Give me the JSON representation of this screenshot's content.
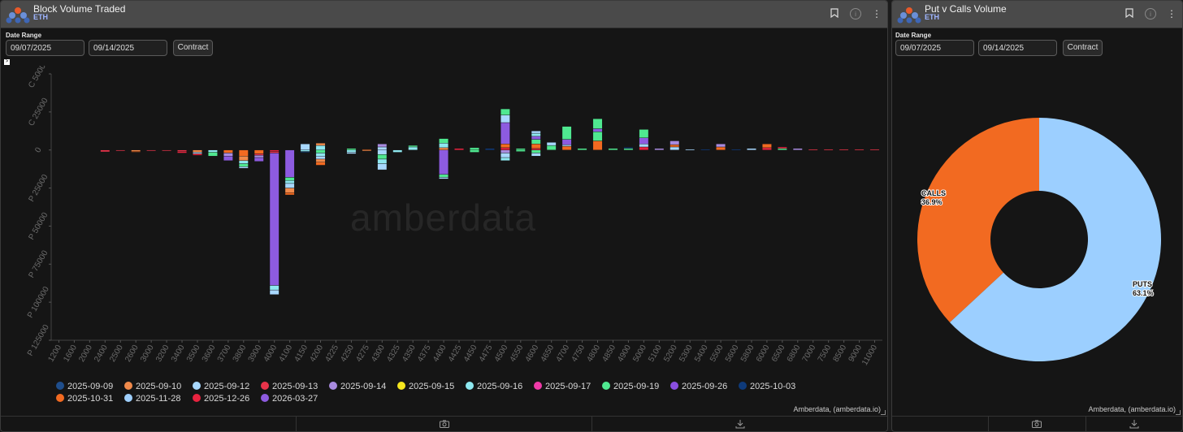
{
  "left": {
    "title": "Block Volume Traded",
    "subtitle": "ETH",
    "date_range_label": "Date Range",
    "date_from": "09/07/2025",
    "date_to": "09/14/2025",
    "contract_label": "Contract",
    "credit": "Amberdata, (amberdata.io)",
    "watermark": "amberdata"
  },
  "right": {
    "title": "Put v Calls Volume",
    "subtitle": "ETH",
    "date_range_label": "Date Range",
    "date_from": "09/07/2025",
    "date_to": "09/14/2025",
    "contract_label": "Contract",
    "credit": "Amberdata, (amberdata.io)"
  },
  "icons": [
    "amberdata-logo-icon",
    "bookmark-icon",
    "info-icon",
    "more-vert-icon",
    "camera-icon",
    "download-icon"
  ],
  "colors": {
    "2025-09-09": "#1f4e8c",
    "2025-09-10": "#f08a4b",
    "2025-09-12": "#a8d8ff",
    "2025-09-13": "#e8334a",
    "2025-09-14": "#a98be0",
    "2025-09-15": "#f5e61e",
    "2025-09-16": "#8ee8f0",
    "2025-09-17": "#f03aa8",
    "2025-09-19": "#4fe890",
    "2025-09-26": "#8a4ee0",
    "2025-10-03": "#0e3a7a",
    "2025-10-31": "#f26a21",
    "2025-11-28": "#9fd0ff",
    "2025-12-26": "#e8233f",
    "2026-03-27": "#8d5be0"
  },
  "chart_data": [
    {
      "type": "bar",
      "stacked": true,
      "y_tick_labels": [
        "C 50000",
        "C 25000",
        "0",
        "P 25000",
        "P 50000",
        "P 75000",
        "P 100000",
        "P 125000"
      ],
      "ylim": [
        -125000,
        50000
      ],
      "categories": [
        "1200",
        "1600",
        "2000",
        "2400",
        "2500",
        "2600",
        "3000",
        "3200",
        "3400",
        "3500",
        "3600",
        "3700",
        "3800",
        "3900",
        "4000",
        "4100",
        "4150",
        "4200",
        "4225",
        "4250",
        "4275",
        "4300",
        "4325",
        "4350",
        "4375",
        "4400",
        "4425",
        "4450",
        "4475",
        "4500",
        "4550",
        "4600",
        "4650",
        "4700",
        "4750",
        "4800",
        "4850",
        "4900",
        "5000",
        "5100",
        "5200",
        "5300",
        "5400",
        "5500",
        "5600",
        "5800",
        "6000",
        "6500",
        "6800",
        "7000",
        "7500",
        "8500",
        "9000",
        "11000"
      ],
      "legend": [
        "2025-09-09",
        "2025-09-10",
        "2025-09-12",
        "2025-09-13",
        "2025-09-14",
        "2025-09-15",
        "2025-09-16",
        "2025-09-17",
        "2025-09-19",
        "2025-09-26",
        "2025-10-03",
        "2025-10-31",
        "2025-11-28",
        "2025-12-26",
        "2026-03-27"
      ],
      "stacks": [
        {
          "c": "2400",
          "calls": [],
          "puts": [
            [
              "2025-09-13",
              1200
            ]
          ]
        },
        {
          "c": "2500",
          "calls": [],
          "puts": [
            [
              "2025-09-13",
              500
            ]
          ]
        },
        {
          "c": "2600",
          "calls": [],
          "puts": [
            [
              "2025-09-10",
              800
            ],
            [
              "2025-10-31",
              500
            ]
          ]
        },
        {
          "c": "3000",
          "calls": [],
          "puts": [
            [
              "2025-09-13",
              500
            ]
          ]
        },
        {
          "c": "3200",
          "calls": [],
          "puts": [
            [
              "2025-09-13",
              500
            ]
          ]
        },
        {
          "c": "3400",
          "calls": [],
          "puts": [
            [
              "2025-09-13",
              1000
            ],
            [
              "2025-12-26",
              1000
            ]
          ]
        },
        {
          "c": "3500",
          "calls": [],
          "puts": [
            [
              "2025-09-10",
              1500
            ],
            [
              "2025-09-12",
              1000
            ],
            [
              "2025-12-26",
              1000
            ]
          ]
        },
        {
          "c": "3600",
          "calls": [],
          "puts": [
            [
              "2025-09-16",
              1500
            ],
            [
              "2025-09-19",
              2500
            ]
          ]
        },
        {
          "c": "3700",
          "calls": [],
          "puts": [
            [
              "2025-10-31",
              2000
            ],
            [
              "2025-09-14",
              2000
            ],
            [
              "2026-03-27",
              3000
            ]
          ]
        },
        {
          "c": "3800",
          "calls": [],
          "puts": [
            [
              "2025-10-31",
              4000
            ],
            [
              "2025-09-10",
              3000
            ],
            [
              "2025-09-16",
              2000
            ],
            [
              "2025-09-19",
              2000
            ],
            [
              "2025-09-12",
              1000
            ]
          ]
        },
        {
          "c": "3900",
          "calls": [],
          "puts": [
            [
              "2025-10-31",
              2500
            ],
            [
              "2025-09-13",
              1000
            ],
            [
              "2025-09-14",
              1500
            ],
            [
              "2026-03-27",
              2500
            ]
          ]
        },
        {
          "c": "4000",
          "calls": [],
          "puts": [
            [
              "2025-12-26",
              1000
            ],
            [
              "2025-09-13",
              1000
            ],
            [
              "2026-03-27",
              87000
            ],
            [
              "2025-09-16",
              3000
            ],
            [
              "2025-09-12",
              3000
            ]
          ]
        },
        {
          "c": "4100",
          "calls": [],
          "puts": [
            [
              "2026-03-27",
              18000
            ],
            [
              "2025-09-19",
              2000
            ],
            [
              "2025-09-16",
              2000
            ],
            [
              "2025-09-12",
              3000
            ],
            [
              "2025-09-10",
              3000
            ],
            [
              "2025-10-31",
              1500
            ]
          ]
        },
        {
          "c": "4150",
          "calls": [
            [
              "2025-09-12",
              4000
            ]
          ],
          "puts": [
            [
              "2025-09-16",
              1000
            ],
            [
              "2025-10-03",
              500
            ]
          ]
        },
        {
          "c": "4200",
          "calls": [
            [
              "2025-09-16",
              3000
            ],
            [
              "2025-09-10",
              1500
            ]
          ],
          "puts": [
            [
              "2025-09-19",
              2000
            ],
            [
              "2025-09-16",
              2000
            ],
            [
              "2025-09-12",
              2000
            ],
            [
              "2025-09-10",
              2000
            ],
            [
              "2025-10-31",
              2000
            ]
          ]
        },
        {
          "c": "4250",
          "calls": [
            [
              "2025-09-19",
              1000
            ]
          ],
          "puts": [
            [
              "2025-09-16",
              1500
            ],
            [
              "2025-09-12",
              1000
            ]
          ]
        },
        {
          "c": "4275",
          "calls": [
            [
              "2025-10-31",
              500
            ]
          ],
          "puts": [
            [
              "2025-09-10",
              500
            ]
          ]
        },
        {
          "c": "4300",
          "calls": [
            [
              "2025-09-12",
              2000
            ],
            [
              "2025-09-14",
              2000
            ]
          ],
          "puts": [
            [
              "2025-09-12",
              3000
            ],
            [
              "2025-09-19",
              3000
            ],
            [
              "2025-09-16",
              3000
            ],
            [
              "2025-09-12",
              4000
            ]
          ]
        },
        {
          "c": "4325",
          "calls": [],
          "puts": [
            [
              "2025-09-16",
              1500
            ]
          ]
        },
        {
          "c": "4350",
          "calls": [
            [
              "2025-09-16",
              2000
            ],
            [
              "2025-09-19",
              1000
            ]
          ],
          "puts": []
        },
        {
          "c": "4400",
          "calls": [
            [
              "2025-09-10",
              1500
            ],
            [
              "2025-09-16",
              3000
            ],
            [
              "2025-09-19",
              3000
            ]
          ],
          "puts": [
            [
              "2026-03-27",
              16000
            ],
            [
              "2025-09-19",
              2000
            ],
            [
              "2025-09-12",
              1000
            ]
          ]
        },
        {
          "c": "4425",
          "calls": [
            [
              "2025-12-26",
              1000
            ]
          ],
          "puts": []
        },
        {
          "c": "4450",
          "calls": [
            [
              "2025-09-19",
              1500
            ]
          ],
          "puts": [
            [
              "2025-09-19",
              1500
            ]
          ]
        },
        {
          "c": "4475",
          "calls": [
            [
              "2025-10-03",
              1000
            ]
          ],
          "puts": []
        },
        {
          "c": "4500",
          "calls": [
            [
              "2025-12-26",
              1500
            ],
            [
              "2025-10-31",
              2500
            ],
            [
              "2026-03-27",
              14000
            ],
            [
              "2025-09-12",
              5000
            ],
            [
              "2025-09-19",
              4000
            ]
          ],
          "puts": [
            [
              "2025-09-14",
              2000
            ],
            [
              "2025-09-12",
              3000
            ],
            [
              "2025-09-16",
              2000
            ]
          ]
        },
        {
          "c": "4550",
          "calls": [
            [
              "2025-09-19",
              1000
            ]
          ],
          "puts": [
            [
              "2025-09-19",
              1000
            ]
          ]
        },
        {
          "c": "4600",
          "calls": [
            [
              "2025-12-26",
              1000
            ],
            [
              "2025-10-31",
              3000
            ],
            [
              "2025-09-19",
              3000
            ],
            [
              "2026-03-27",
              2000
            ],
            [
              "2025-09-16",
              2000
            ],
            [
              "2025-09-12",
              1500
            ]
          ],
          "puts": [
            [
              "2025-09-19",
              2000
            ],
            [
              "2025-09-12",
              2000
            ]
          ]
        },
        {
          "c": "4650",
          "calls": [
            [
              "2025-09-19",
              3000
            ],
            [
              "2025-09-12",
              2000
            ]
          ],
          "puts": []
        },
        {
          "c": "4700",
          "calls": [
            [
              "2025-10-31",
              2500
            ],
            [
              "2025-09-12",
              1000
            ],
            [
              "2026-03-27",
              3500
            ],
            [
              "2025-09-19",
              8500
            ]
          ],
          "puts": []
        },
        {
          "c": "4750",
          "calls": [
            [
              "2025-09-19",
              1000
            ]
          ],
          "puts": []
        },
        {
          "c": "4800",
          "calls": [
            [
              "2025-10-31",
              6000
            ],
            [
              "2025-09-19",
              6000
            ],
            [
              "2026-03-27",
              2000
            ],
            [
              "2025-09-19",
              6500
            ]
          ],
          "puts": []
        },
        {
          "c": "4850",
          "calls": [
            [
              "2025-09-19",
              1000
            ]
          ],
          "puts": []
        },
        {
          "c": "4900",
          "calls": [
            [
              "2025-09-19",
              1000
            ],
            [
              "2025-10-03",
              800
            ]
          ],
          "puts": []
        },
        {
          "c": "5000",
          "calls": [
            [
              "2025-12-26",
              2000
            ],
            [
              "2025-09-12",
              2000
            ],
            [
              "2026-03-27",
              4000
            ],
            [
              "2025-09-19",
              5500
            ]
          ],
          "puts": []
        },
        {
          "c": "5100",
          "calls": [
            [
              "2025-09-14",
              1000
            ]
          ],
          "puts": []
        },
        {
          "c": "5200",
          "calls": [
            [
              "2025-09-12",
              2000
            ],
            [
              "2025-10-31",
              1500
            ],
            [
              "2025-09-14",
              2500
            ]
          ],
          "puts": []
        },
        {
          "c": "5300",
          "calls": [
            [
              "2025-09-12",
              500
            ]
          ],
          "puts": []
        },
        {
          "c": "5400",
          "calls": [
            [
              "2025-10-03",
              500
            ]
          ],
          "puts": []
        },
        {
          "c": "5500",
          "calls": [
            [
              "2025-10-31",
              2000
            ],
            [
              "2025-09-14",
              2000
            ]
          ],
          "puts": []
        },
        {
          "c": "5600",
          "calls": [
            [
              "2025-10-03",
              500
            ]
          ],
          "puts": []
        },
        {
          "c": "5800",
          "calls": [
            [
              "2025-09-12",
              1000
            ]
          ],
          "puts": []
        },
        {
          "c": "6000",
          "calls": [
            [
              "2025-12-26",
              1500
            ],
            [
              "2025-10-31",
              2500
            ]
          ],
          "puts": []
        },
        {
          "c": "6500",
          "calls": [
            [
              "2025-09-19",
              1000
            ],
            [
              "2025-12-26",
              1000
            ]
          ],
          "puts": []
        },
        {
          "c": "6800",
          "calls": [
            [
              "2025-09-14",
              1000
            ]
          ],
          "puts": []
        },
        {
          "c": "7000",
          "calls": [
            [
              "2025-09-13",
              500
            ]
          ],
          "puts": []
        },
        {
          "c": "7500",
          "calls": [
            [
              "2025-09-13",
              500
            ]
          ],
          "puts": []
        },
        {
          "c": "8500",
          "calls": [
            [
              "2025-09-13",
              500
            ]
          ],
          "puts": []
        },
        {
          "c": "9000",
          "calls": [
            [
              "2025-09-13",
              500
            ]
          ],
          "puts": []
        },
        {
          "c": "11000",
          "calls": [
            [
              "2025-09-13",
              500
            ]
          ],
          "puts": []
        }
      ]
    },
    {
      "type": "pie",
      "donut": true,
      "slices": [
        {
          "label": "CALLS",
          "pct_label": "36.9%",
          "value": 36.9,
          "color": "#f26a21"
        },
        {
          "label": "PUTS",
          "pct_label": "63.1%",
          "value": 63.1,
          "color": "#9ccfff"
        }
      ]
    }
  ]
}
